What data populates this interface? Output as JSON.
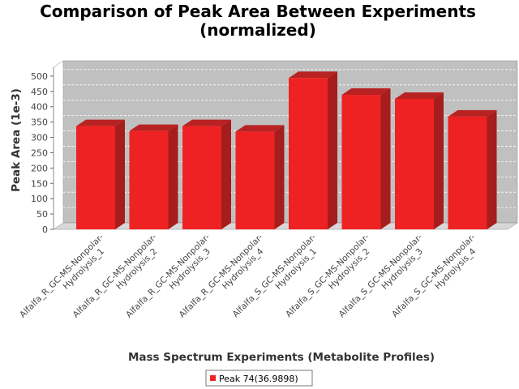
{
  "chart_data": {
    "type": "bar",
    "title": "Comparison of Peak Area Between Experiments (normalized)",
    "title_lines": [
      "Comparison of Peak Area Between Experiments",
      "(normalized)"
    ],
    "xlabel": "Mass Spectrum Experiments (Metabolite Profiles)",
    "ylabel": "Peak Area (1e-3)",
    "ylim": [
      0,
      550
    ],
    "yticks": [
      0,
      50,
      100,
      150,
      200,
      250,
      300,
      350,
      400,
      450,
      500
    ],
    "grid": true,
    "legend_position": "bottom",
    "categories": [
      [
        "Alfalfa_R_GC-MS-Nonpolar-",
        "Hydrolysis_1"
      ],
      [
        "Alfalfa_R_GC-MS-Nonpolar-",
        "Hydrolysis_2"
      ],
      [
        "Alfalfa_R_GC-MS-Nonpolar-",
        "Hydrolysis_3"
      ],
      [
        "Alfalfa_R_GC-MS-Nonpolar-",
        "Hydrolysis_4"
      ],
      [
        "Alfalfa_S_GC-MS-Nonpolar-",
        "Hydrolysis_1"
      ],
      [
        "Alfalfa_S_GC-MS-Nonpolar-",
        "Hydrolysis_2"
      ],
      [
        "Alfalfa_S_GC-MS-Nonpolar-",
        "Hydrolysis_3"
      ],
      [
        "Alfalfa_S_GC-MS-Nonpolar-",
        "Hydrolysis_4"
      ]
    ],
    "series": [
      {
        "name": "Peak 74(36.9898)",
        "color": "#ee2222",
        "values": [
          358,
          342,
          358,
          340,
          515,
          460,
          447,
          389
        ]
      }
    ]
  }
}
